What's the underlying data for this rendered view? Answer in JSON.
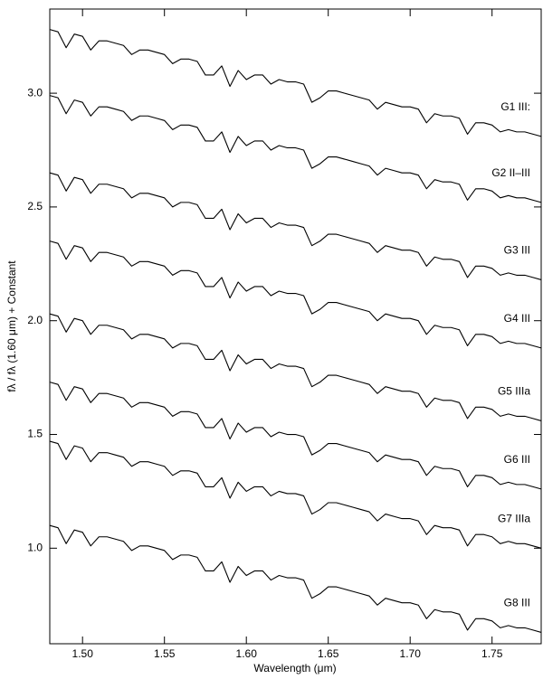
{
  "chart_data": {
    "type": "line",
    "xlabel": "Wavelength (μm)",
    "ylabel": "fλ / fλ (1.60 μm) + Constant",
    "xlim": [
      1.48,
      1.78
    ],
    "ylim": [
      0.58,
      3.37
    ],
    "xticks": [
      {
        "value": 1.5,
        "label": "1.50"
      },
      {
        "value": 1.55,
        "label": "1.55"
      },
      {
        "value": 1.6,
        "label": "1.60"
      },
      {
        "value": 1.65,
        "label": "1.65"
      },
      {
        "value": 1.7,
        "label": "1.70"
      },
      {
        "value": 1.75,
        "label": "1.75"
      }
    ],
    "yticks": [
      {
        "value": 1,
        "label": "1.0"
      },
      1.5,
      {
        "value": 2,
        "label": "2.0"
      },
      2.5,
      {
        "value": 3,
        "label": "3.0"
      }
    ],
    "x": [
      1.48,
      1.485,
      1.49,
      1.495,
      1.5,
      1.505,
      1.51,
      1.515,
      1.52,
      1.525,
      1.53,
      1.535,
      1.54,
      1.545,
      1.55,
      1.555,
      1.56,
      1.565,
      1.57,
      1.575,
      1.58,
      1.585,
      1.59,
      1.595,
      1.6,
      1.605,
      1.61,
      1.615,
      1.62,
      1.625,
      1.63,
      1.635,
      1.64,
      1.645,
      1.65,
      1.655,
      1.66,
      1.665,
      1.67,
      1.675,
      1.68,
      1.685,
      1.69,
      1.695,
      1.7,
      1.705,
      1.71,
      1.715,
      1.72,
      1.725,
      1.73,
      1.735,
      1.74,
      1.745,
      1.75,
      1.755,
      1.76,
      1.765,
      1.77,
      1.775,
      1.78
    ],
    "series": [
      {
        "name": "G1 III:",
        "color": "#000000",
        "values": [
          3.28,
          3.27,
          3.2,
          3.26,
          3.25,
          3.19,
          3.23,
          3.23,
          3.22,
          3.21,
          3.17,
          3.19,
          3.19,
          3.18,
          3.17,
          3.13,
          3.15,
          3.15,
          3.14,
          3.08,
          3.08,
          3.12,
          3.03,
          3.1,
          3.06,
          3.08,
          3.08,
          3.04,
          3.06,
          3.05,
          3.05,
          3.04,
          2.96,
          2.98,
          3.01,
          3.01,
          3.0,
          2.99,
          2.98,
          2.97,
          2.93,
          2.96,
          2.95,
          2.94,
          2.94,
          2.93,
          2.87,
          2.91,
          2.9,
          2.9,
          2.89,
          2.82,
          2.87,
          2.87,
          2.86,
          2.83,
          2.84,
          2.83,
          2.83,
          2.82,
          2.81
        ]
      },
      {
        "name": "G2 II–III",
        "color": "#000000",
        "values": [
          2.99,
          2.98,
          2.91,
          2.97,
          2.96,
          2.9,
          2.94,
          2.94,
          2.93,
          2.92,
          2.88,
          2.9,
          2.9,
          2.89,
          2.88,
          2.84,
          2.86,
          2.86,
          2.85,
          2.79,
          2.79,
          2.83,
          2.74,
          2.81,
          2.77,
          2.79,
          2.79,
          2.75,
          2.77,
          2.76,
          2.76,
          2.75,
          2.67,
          2.69,
          2.72,
          2.72,
          2.71,
          2.7,
          2.69,
          2.68,
          2.64,
          2.67,
          2.66,
          2.65,
          2.65,
          2.64,
          2.58,
          2.62,
          2.61,
          2.61,
          2.6,
          2.53,
          2.58,
          2.58,
          2.57,
          2.54,
          2.55,
          2.54,
          2.54,
          2.53,
          2.52
        ]
      },
      {
        "name": "G3 III",
        "color": "#000000",
        "values": [
          2.65,
          2.64,
          2.57,
          2.63,
          2.62,
          2.56,
          2.6,
          2.6,
          2.59,
          2.58,
          2.54,
          2.56,
          2.56,
          2.55,
          2.54,
          2.5,
          2.52,
          2.52,
          2.51,
          2.45,
          2.45,
          2.49,
          2.4,
          2.47,
          2.43,
          2.45,
          2.45,
          2.41,
          2.43,
          2.42,
          2.42,
          2.41,
          2.33,
          2.35,
          2.38,
          2.38,
          2.37,
          2.36,
          2.35,
          2.34,
          2.3,
          2.33,
          2.32,
          2.31,
          2.31,
          2.3,
          2.24,
          2.28,
          2.27,
          2.27,
          2.26,
          2.19,
          2.24,
          2.24,
          2.23,
          2.2,
          2.21,
          2.2,
          2.2,
          2.19,
          2.18
        ]
      },
      {
        "name": "G4 III",
        "color": "#000000",
        "values": [
          2.35,
          2.34,
          2.27,
          2.33,
          2.32,
          2.26,
          2.3,
          2.3,
          2.29,
          2.28,
          2.24,
          2.26,
          2.26,
          2.25,
          2.24,
          2.2,
          2.22,
          2.22,
          2.21,
          2.15,
          2.15,
          2.19,
          2.1,
          2.17,
          2.13,
          2.15,
          2.15,
          2.11,
          2.13,
          2.12,
          2.12,
          2.11,
          2.03,
          2.05,
          2.08,
          2.08,
          2.07,
          2.06,
          2.05,
          2.04,
          2.0,
          2.03,
          2.02,
          2.01,
          2.01,
          2.0,
          1.94,
          1.98,
          1.97,
          1.97,
          1.96,
          1.89,
          1.94,
          1.94,
          1.93,
          1.9,
          1.91,
          1.9,
          1.9,
          1.89,
          1.88
        ]
      },
      {
        "name": "G5 IIIa",
        "color": "#000000",
        "values": [
          2.03,
          2.02,
          1.95,
          2.01,
          2.0,
          1.94,
          1.98,
          1.98,
          1.97,
          1.96,
          1.92,
          1.94,
          1.94,
          1.93,
          1.92,
          1.88,
          1.9,
          1.9,
          1.89,
          1.83,
          1.83,
          1.87,
          1.78,
          1.85,
          1.81,
          1.83,
          1.83,
          1.79,
          1.81,
          1.8,
          1.8,
          1.79,
          1.71,
          1.73,
          1.76,
          1.76,
          1.75,
          1.74,
          1.73,
          1.72,
          1.68,
          1.71,
          1.7,
          1.69,
          1.69,
          1.68,
          1.62,
          1.66,
          1.65,
          1.65,
          1.64,
          1.57,
          1.62,
          1.62,
          1.61,
          1.58,
          1.59,
          1.58,
          1.58,
          1.57,
          1.56
        ]
      },
      {
        "name": "G6 III",
        "color": "#000000",
        "values": [
          1.73,
          1.72,
          1.65,
          1.71,
          1.7,
          1.64,
          1.68,
          1.68,
          1.67,
          1.66,
          1.62,
          1.64,
          1.64,
          1.63,
          1.62,
          1.58,
          1.6,
          1.6,
          1.59,
          1.53,
          1.53,
          1.57,
          1.48,
          1.55,
          1.51,
          1.53,
          1.53,
          1.49,
          1.51,
          1.5,
          1.5,
          1.49,
          1.41,
          1.43,
          1.46,
          1.46,
          1.45,
          1.44,
          1.43,
          1.42,
          1.38,
          1.41,
          1.4,
          1.39,
          1.39,
          1.38,
          1.32,
          1.36,
          1.35,
          1.35,
          1.34,
          1.27,
          1.32,
          1.32,
          1.31,
          1.28,
          1.29,
          1.28,
          1.28,
          1.27,
          1.26
        ]
      },
      {
        "name": "G7 IIIa",
        "color": "#000000",
        "values": [
          1.47,
          1.46,
          1.39,
          1.45,
          1.44,
          1.38,
          1.42,
          1.42,
          1.41,
          1.4,
          1.36,
          1.38,
          1.38,
          1.37,
          1.36,
          1.32,
          1.34,
          1.34,
          1.33,
          1.27,
          1.27,
          1.31,
          1.22,
          1.29,
          1.25,
          1.27,
          1.27,
          1.23,
          1.25,
          1.24,
          1.24,
          1.23,
          1.15,
          1.17,
          1.2,
          1.2,
          1.19,
          1.18,
          1.17,
          1.16,
          1.12,
          1.15,
          1.14,
          1.13,
          1.13,
          1.12,
          1.06,
          1.1,
          1.09,
          1.09,
          1.08,
          1.01,
          1.06,
          1.06,
          1.05,
          1.02,
          1.03,
          1.02,
          1.02,
          1.01,
          1.0
        ]
      },
      {
        "name": "G8 III",
        "color": "#000000",
        "values": [
          1.1,
          1.09,
          1.02,
          1.08,
          1.07,
          1.01,
          1.05,
          1.05,
          1.04,
          1.03,
          0.99,
          1.01,
          1.01,
          1.0,
          0.99,
          0.95,
          0.97,
          0.97,
          0.96,
          0.9,
          0.9,
          0.94,
          0.85,
          0.92,
          0.88,
          0.9,
          0.9,
          0.86,
          0.88,
          0.87,
          0.87,
          0.86,
          0.78,
          0.8,
          0.83,
          0.83,
          0.82,
          0.81,
          0.8,
          0.79,
          0.75,
          0.78,
          0.77,
          0.76,
          0.76,
          0.75,
          0.69,
          0.73,
          0.72,
          0.72,
          0.71,
          0.64,
          0.69,
          0.69,
          0.68,
          0.65,
          0.66,
          0.65,
          0.65,
          0.64,
          0.63
        ]
      }
    ]
  }
}
